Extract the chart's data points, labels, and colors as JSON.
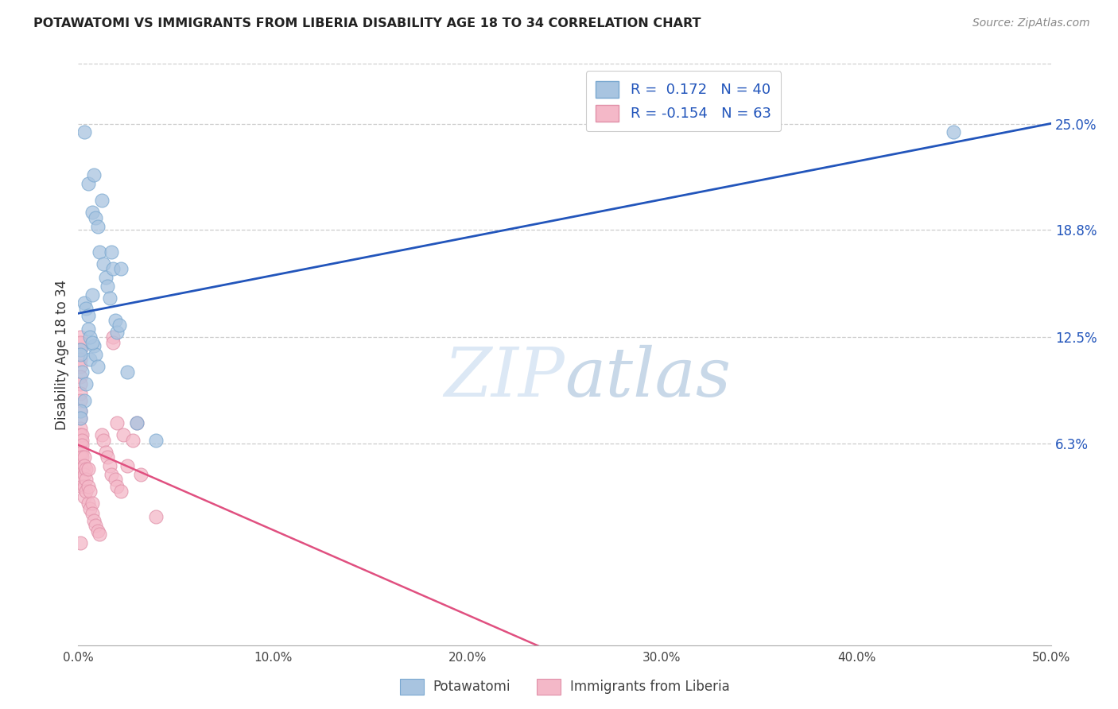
{
  "title": "POTAWATOMI VS IMMIGRANTS FROM LIBERIA DISABILITY AGE 18 TO 34 CORRELATION CHART",
  "source": "Source: ZipAtlas.com",
  "ylabel": "Disability Age 18 to 34",
  "watermark_zip": "ZIP",
  "watermark_atlas": "atlas",
  "legend_blue_r": "0.172",
  "legend_blue_n": "40",
  "legend_pink_r": "-0.154",
  "legend_pink_n": "63",
  "legend_label_blue": "Potawatomi",
  "legend_label_pink": "Immigrants from Liberia",
  "blue_fill": "#a8c4e0",
  "blue_edge": "#7aa8d0",
  "pink_fill": "#f4b8c8",
  "pink_edge": "#e090a8",
  "blue_line": "#2255bb",
  "pink_line": "#e05080",
  "right_yticks": [
    0.063,
    0.125,
    0.188,
    0.25
  ],
  "right_yticklabels": [
    "6.3%",
    "12.5%",
    "18.8%",
    "25.0%"
  ],
  "xticks": [
    0.0,
    0.1,
    0.2,
    0.3,
    0.4,
    0.5
  ],
  "xticklabels": [
    "0.0%",
    "10.0%",
    "20.0%",
    "30.0%",
    "40.0%",
    "50.0%"
  ],
  "xlim": [
    0.0,
    0.5
  ],
  "ylim": [
    -0.055,
    0.285
  ],
  "blue_x": [
    0.003,
    0.005,
    0.007,
    0.008,
    0.009,
    0.01,
    0.011,
    0.012,
    0.013,
    0.014,
    0.015,
    0.016,
    0.017,
    0.018,
    0.019,
    0.02,
    0.021,
    0.022,
    0.003,
    0.004,
    0.005,
    0.006,
    0.007,
    0.008,
    0.009,
    0.01,
    0.002,
    0.003,
    0.004,
    0.005,
    0.006,
    0.007,
    0.001,
    0.001,
    0.025,
    0.03,
    0.04,
    0.45,
    0.001,
    0.001
  ],
  "blue_y": [
    0.245,
    0.215,
    0.198,
    0.22,
    0.195,
    0.19,
    0.175,
    0.205,
    0.168,
    0.16,
    0.155,
    0.148,
    0.175,
    0.165,
    0.135,
    0.128,
    0.132,
    0.165,
    0.145,
    0.142,
    0.138,
    0.112,
    0.15,
    0.12,
    0.115,
    0.108,
    0.105,
    0.088,
    0.098,
    0.13,
    0.125,
    0.122,
    0.118,
    0.115,
    0.105,
    0.075,
    0.065,
    0.245,
    0.082,
    0.078
  ],
  "pink_x": [
    0.001,
    0.001,
    0.001,
    0.001,
    0.001,
    0.001,
    0.001,
    0.001,
    0.001,
    0.001,
    0.001,
    0.001,
    0.001,
    0.001,
    0.001,
    0.001,
    0.001,
    0.002,
    0.002,
    0.002,
    0.002,
    0.002,
    0.002,
    0.002,
    0.002,
    0.003,
    0.003,
    0.003,
    0.003,
    0.003,
    0.004,
    0.004,
    0.004,
    0.005,
    0.005,
    0.005,
    0.006,
    0.006,
    0.007,
    0.007,
    0.008,
    0.009,
    0.01,
    0.011,
    0.012,
    0.013,
    0.014,
    0.015,
    0.016,
    0.017,
    0.018,
    0.019,
    0.02,
    0.018,
    0.02,
    0.022,
    0.023,
    0.025,
    0.028,
    0.03,
    0.032,
    0.04,
    0.001
  ],
  "pink_y": [
    0.125,
    0.122,
    0.118,
    0.112,
    0.108,
    0.102,
    0.098,
    0.092,
    0.088,
    0.082,
    0.078,
    0.072,
    0.068,
    0.062,
    0.058,
    0.055,
    0.05,
    0.068,
    0.065,
    0.062,
    0.058,
    0.055,
    0.048,
    0.042,
    0.038,
    0.055,
    0.05,
    0.045,
    0.038,
    0.032,
    0.048,
    0.042,
    0.035,
    0.048,
    0.038,
    0.028,
    0.035,
    0.025,
    0.028,
    0.022,
    0.018,
    0.015,
    0.012,
    0.01,
    0.068,
    0.065,
    0.058,
    0.055,
    0.05,
    0.045,
    0.125,
    0.042,
    0.038,
    0.122,
    0.075,
    0.035,
    0.068,
    0.05,
    0.065,
    0.075,
    0.045,
    0.02,
    0.005
  ]
}
